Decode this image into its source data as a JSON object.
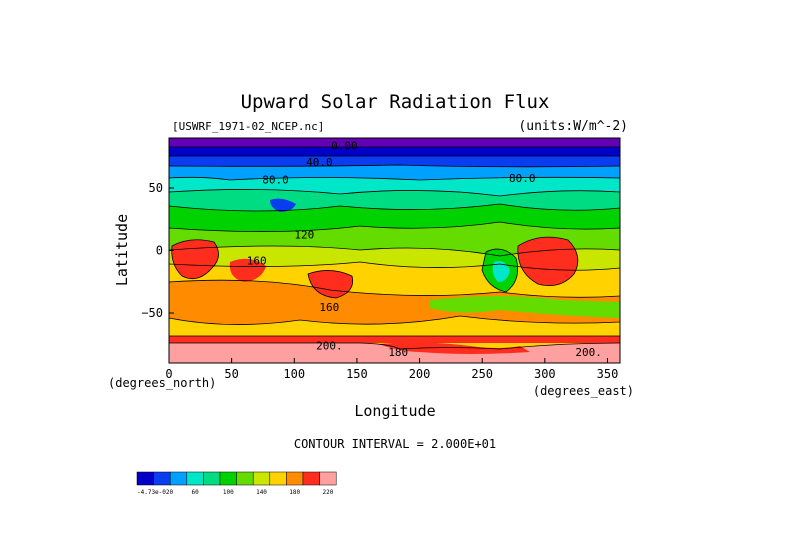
{
  "chart_data": {
    "type": "contour",
    "title": "Upward Solar Radiation Flux",
    "source_file": "[USWRF_1971-02_NCEP.nc]",
    "units": "(units:W/m^-2)",
    "xlabel": "Longitude",
    "ylabel": "Latitude",
    "x_unit": "(degrees_east)",
    "y_unit": "(degrees_north)",
    "x_ticks": [
      "0",
      "50",
      "100",
      "150",
      "200",
      "250",
      "300",
      "350"
    ],
    "y_ticks": [
      "50",
      "0",
      "−50"
    ],
    "xlim": [
      0,
      360
    ],
    "ylim": [
      -90,
      90
    ],
    "contour_interval": "CONTOUR INTERVAL = 2.000E+01",
    "contour_labels": [
      {
        "text": "0.00",
        "lon": 140,
        "lat": 84
      },
      {
        "text": "40.0",
        "lon": 120,
        "lat": 71
      },
      {
        "text": "80.0",
        "lon": 85,
        "lat": 57
      },
      {
        "text": "80.0",
        "lon": 282,
        "lat": 58
      },
      {
        "text": "120",
        "lon": 108,
        "lat": 13
      },
      {
        "text": "160",
        "lon": 70,
        "lat": -8
      },
      {
        "text": "160",
        "lon": 128,
        "lat": -45
      },
      {
        "text": "200.",
        "lon": 128,
        "lat": -76
      },
      {
        "text": "180",
        "lon": 183,
        "lat": -81
      },
      {
        "text": "200.",
        "lon": 335,
        "lat": -81
      }
    ],
    "colorbar": {
      "colors": [
        "#0000c8",
        "#0a3cf0",
        "#00a0ff",
        "#00e6c8",
        "#00dc82",
        "#00d200",
        "#64dc00",
        "#c8e600",
        "#ffd200",
        "#ff8c00",
        "#ff2d1e",
        "#ffa0a0"
      ],
      "labels": [
        "-4.73e-020",
        "60",
        "100",
        "140",
        "180",
        "220"
      ],
      "label_positions": [
        0,
        3,
        5,
        7,
        9,
        11
      ]
    }
  }
}
